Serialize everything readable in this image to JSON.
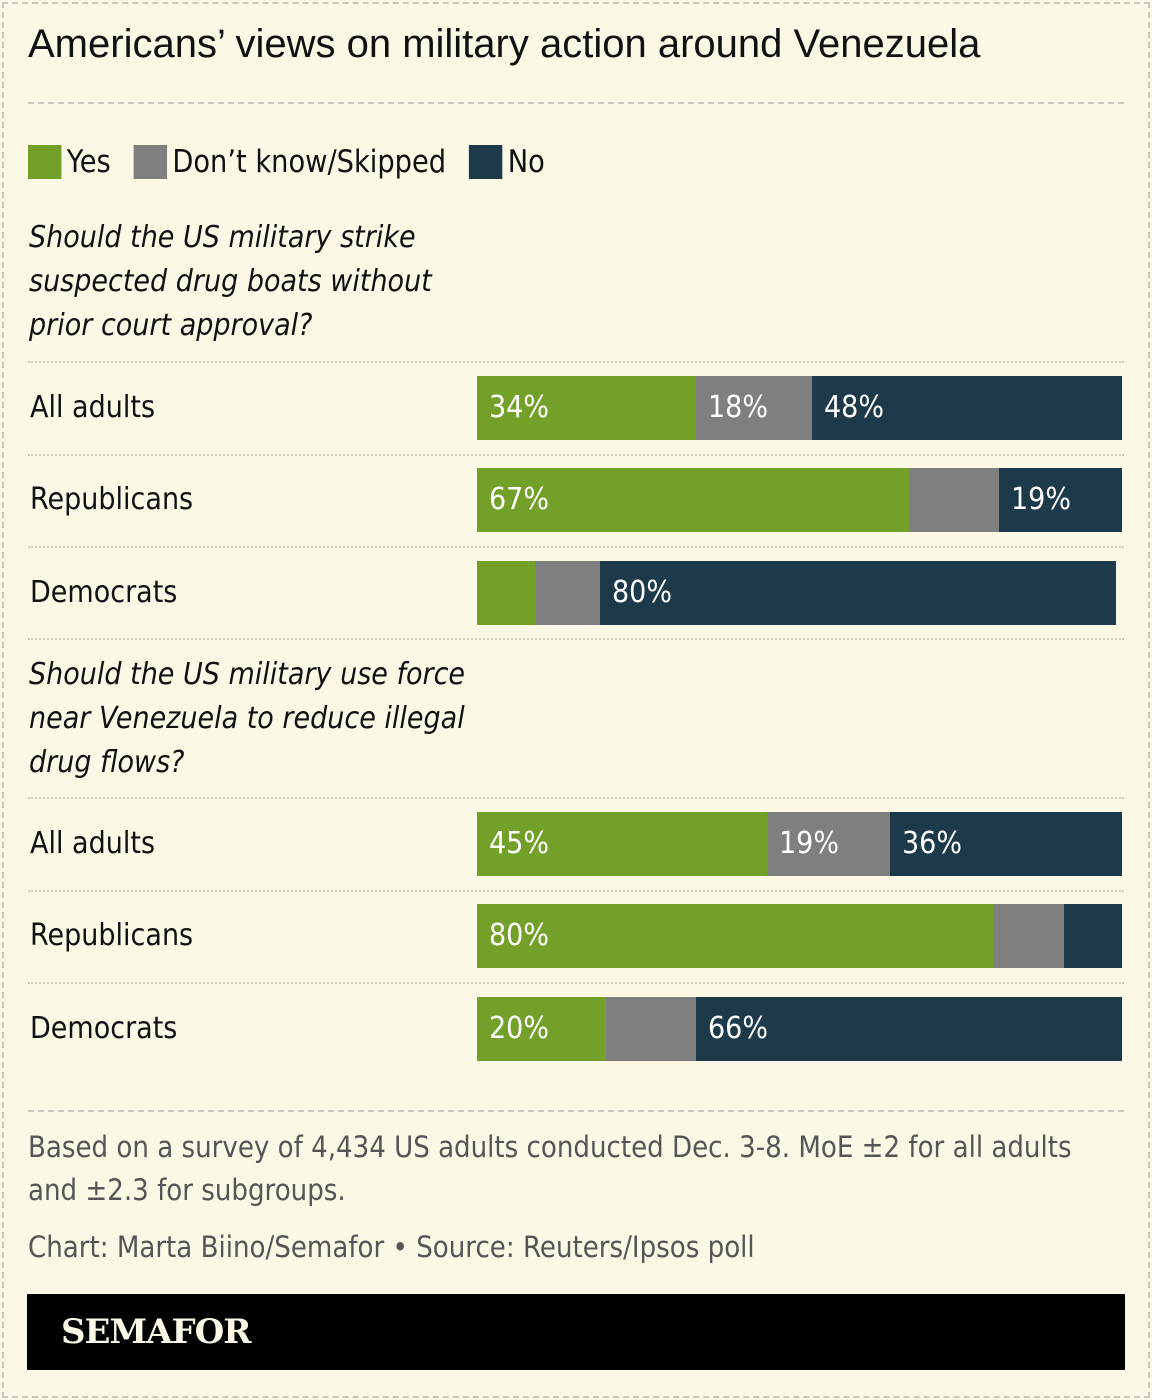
{
  "chart_data": {
    "type": "bar",
    "orientation": "horizontal-stacked-100",
    "title": "Americans’ views on military action around Venezuela",
    "legend": {
      "placement": "top-left",
      "entries": [
        "Yes",
        "Don’t know/Skipped",
        "No"
      ]
    },
    "colors": {
      "Yes": "#72a028",
      "Don’t know/Skipped": "#7f7f7f",
      "No": "#1c3a4a"
    },
    "groups": [
      {
        "question": "Should the US military strike suspected drug boats without prior court approval?",
        "rows": [
          {
            "label": "All adults",
            "values": [
              34,
              18,
              48
            ],
            "labels": [
              "34%",
              "18%",
              "48%"
            ]
          },
          {
            "label": "Republicans",
            "values": [
              67,
              14,
              19
            ],
            "labels": [
              "67%",
              "",
              "19%"
            ]
          },
          {
            "label": "Democrats",
            "values": [
              9,
              10,
              80
            ],
            "labels": [
              "",
              "",
              "80%"
            ]
          }
        ]
      },
      {
        "question": "Should the US military use force near Venezuela to reduce illegal drug flows?",
        "rows": [
          {
            "label": "All adults",
            "values": [
              45,
              19,
              36
            ],
            "labels": [
              "45%",
              "19%",
              "36%"
            ]
          },
          {
            "label": "Republicans",
            "values": [
              80,
              11,
              9
            ],
            "labels": [
              "80%",
              "",
              ""
            ]
          },
          {
            "label": "Democrats",
            "values": [
              20,
              14,
              66
            ],
            "labels": [
              "20%",
              "",
              "66%"
            ]
          }
        ]
      }
    ]
  },
  "footer": {
    "note": "Based on a survey of 4,434 US adults conducted Dec. 3-8. MoE ±2 for all adults and ±2.3 for subgroups.",
    "credit": "Chart: Marta Biino/Semafor • Source: Reuters/Ipsos poll",
    "brand": "SEMAFOR"
  }
}
